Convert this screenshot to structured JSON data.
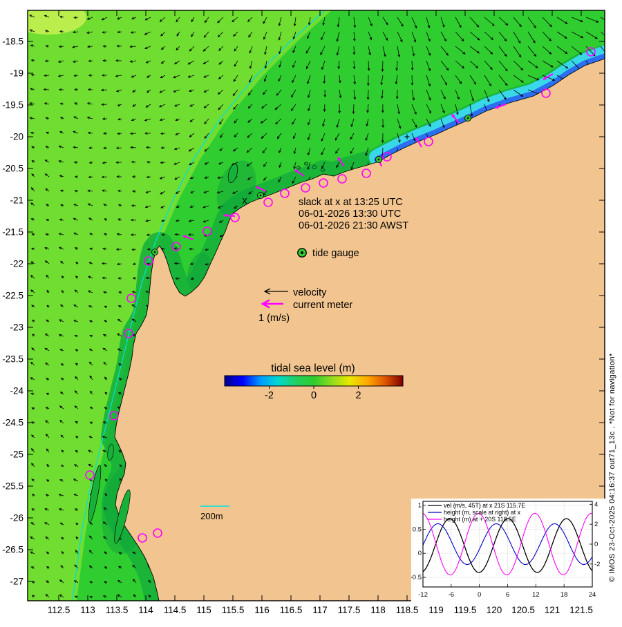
{
  "figure": {
    "watermark": "© IMOS 23-Oct-2025 04:16:37 out71_13c . *Not for navigation*"
  },
  "map": {
    "lon_tick_labels": [
      "112.5",
      "113",
      "113.5",
      "114",
      "114.5",
      "115",
      "115.5",
      "116",
      "116.5",
      "117",
      "117.5",
      "118",
      "118.5",
      "119",
      "119.5",
      "120",
      "120.5",
      "121",
      "121.5"
    ],
    "lat_tick_labels": [
      "-18.5",
      "-19",
      "-19.5",
      "-20",
      "-20.5",
      "-21",
      "-21.5",
      "-22",
      "-22.5",
      "-23",
      "-23.5",
      "-24",
      "-24.5",
      "-25",
      "-25.5",
      "-26",
      "-26.5",
      "-27"
    ],
    "annotations": {
      "slack_line1": "slack at x at 13:25 UTC",
      "slack_line2": "06-01-2026 13:30 UTC",
      "slack_line3": "06-01-2026 21:30 AWST",
      "tide_gauge": "tide gauge",
      "velocity": "velocity",
      "current_meter": "current meter",
      "velocity_scale": "1 (m/s)",
      "depth_label": "200m",
      "station_x": "x",
      "station_plus": "+"
    },
    "colorbar": {
      "title": "tidal sea level (m)",
      "tick_labels": [
        "-2",
        "0",
        "2"
      ],
      "range": [
        -4,
        4
      ],
      "gradient": [
        "#00008f",
        "#0000ff",
        "#0099ff",
        "#00d9d0",
        "#20cf60",
        "#2ecc2e",
        "#8fdc1f",
        "#e8e800",
        "#ffaa00",
        "#e05500",
        "#7f0000"
      ]
    },
    "colors": {
      "land": "#f2c48f",
      "ocean_mid": "#30cd30",
      "ocean_light": "#70dd31",
      "ocean_lighter": "#b9ee4d",
      "shelf_dark": "#17b13a",
      "shallow_patch": "#0fa43a",
      "ribbon_cyan": "#38d8e8",
      "ribbon_blue": "#2b6ff0",
      "contour": "#00e0e0",
      "current_meter": "#ff00ff",
      "arrow": "#000000"
    }
  },
  "chart_data": {
    "type": "line",
    "x_range": [
      -12,
      24
    ],
    "x_tick_labels": [
      "-12",
      "-6",
      "0",
      "6",
      "12",
      "18",
      "24"
    ],
    "left_axis": {
      "tick_labels": [
        "1",
        "0.5",
        "0",
        "-0.5"
      ],
      "range": [
        -0.7,
        1.08
      ]
    },
    "right_axis": {
      "tick_labels": [
        "4",
        "2",
        "0",
        "-2"
      ],
      "range": [
        -4.3,
        4.3
      ]
    },
    "grid": true,
    "legend_position": "top-left",
    "sample_times_h": [
      -12,
      -9,
      -6,
      -3,
      0,
      3,
      6,
      9,
      12,
      15,
      18,
      21,
      24
    ],
    "series": [
      {
        "name": "vel (m/s, 45T) at x 21S 115.7E",
        "color": "#000000",
        "axis": "left",
        "model": "sinusoid",
        "amplitude": 0.56,
        "offset": 0.16,
        "period_h": 12.4,
        "phase_h": 3,
        "samples": [
          -0.38,
          0.27,
          0.71,
          0.1,
          -0.4,
          0.16,
          0.72,
          0.22,
          -0.39,
          0.05,
          0.7,
          0.33,
          -0.37
        ]
      },
      {
        "name": "height (m, scale at right) at x",
        "color": "#0000cc",
        "axis": "right",
        "model": "sinusoid",
        "amplitude": 2.05,
        "offset": 0,
        "period_h": 12.4,
        "phase_h": 0.5,
        "samples": [
          -0.1,
          2.04,
          0.31,
          -2.01,
          -0.51,
          1.96,
          0.71,
          -1.87,
          -0.9,
          1.79,
          1.09,
          -1.67,
          -1.25
        ]
      },
      {
        "name": "height (m) at + 20S 118.5E",
        "color": "#ff00ff",
        "axis": "right",
        "model": "sinusoid",
        "amplitude": 3.1,
        "offset": 0,
        "period_h": 12.0,
        "phase_h": -3.2,
        "samples": [
          3.08,
          0.32,
          -3.08,
          0.32,
          3.08,
          -0.32,
          -3.08,
          0.32,
          3.08,
          -0.32,
          -3.08,
          0.32,
          3.08
        ]
      }
    ]
  }
}
